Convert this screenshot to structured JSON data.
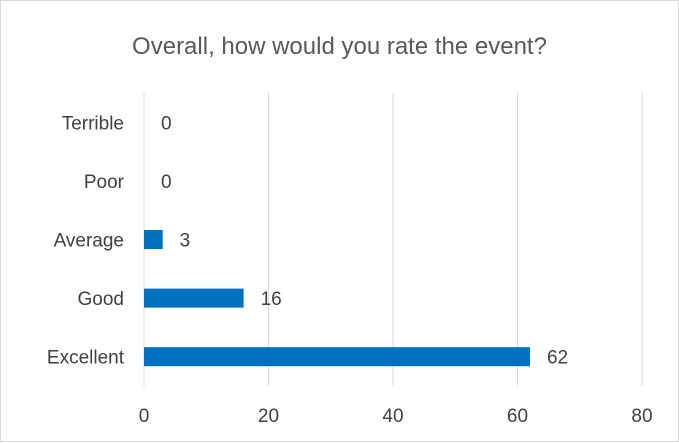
{
  "chart_data": {
    "type": "bar",
    "orientation": "horizontal",
    "title": "Overall, how would you rate the event?",
    "categories": [
      "Excellent",
      "Good",
      "Average",
      "Poor",
      "Terrible"
    ],
    "values": [
      62,
      16,
      3,
      0,
      0
    ],
    "xlim": [
      0,
      80
    ],
    "xticks": [
      0,
      20,
      40,
      60,
      80
    ],
    "xlabel": "",
    "ylabel": "",
    "grid": "vertical",
    "legend": "none",
    "data_labels": true,
    "colors": {
      "bar": "#0070C0",
      "grid": "#d9d9d9",
      "text": "#404040",
      "title": "#595959"
    }
  }
}
